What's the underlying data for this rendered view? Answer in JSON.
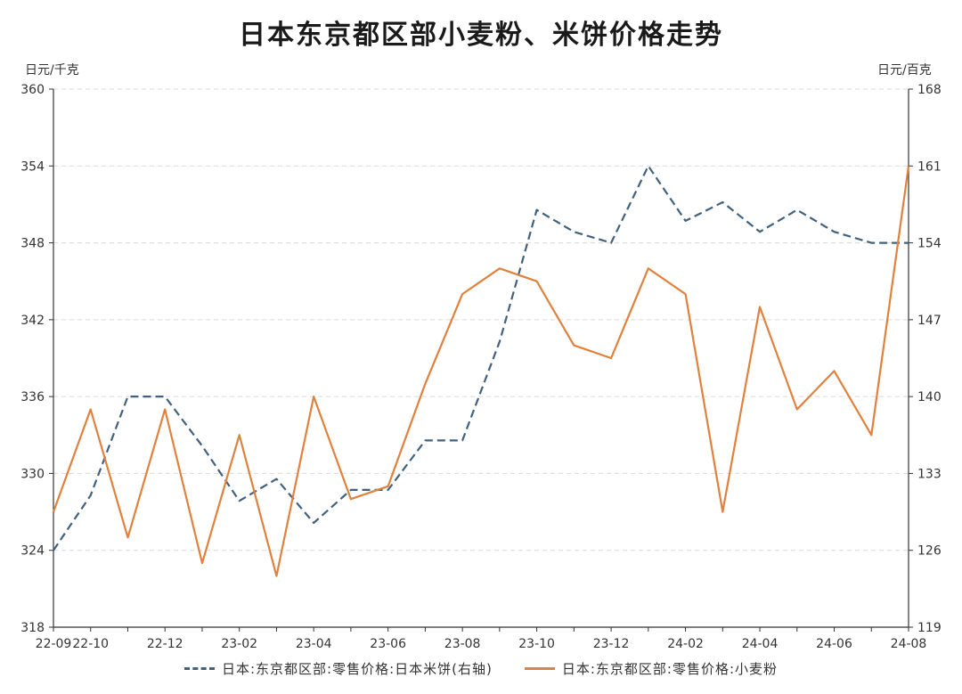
{
  "chart_data": {
    "type": "line",
    "title": "日本东京都区部小麦粉、米饼价格走势",
    "left_axis_unit": "日元/千克",
    "right_axis_unit": "日元/百克",
    "left_ylim": [
      318,
      360
    ],
    "right_ylim": [
      119,
      168
    ],
    "left_ticks": [
      318,
      324,
      330,
      336,
      342,
      348,
      354,
      360
    ],
    "right_ticks": [
      119,
      126,
      133,
      140,
      147,
      154,
      161,
      168
    ],
    "x": [
      "22-09",
      "22-10",
      "22-11",
      "22-12",
      "23-01",
      "23-02",
      "23-03",
      "23-04",
      "23-05",
      "23-06",
      "23-07",
      "23-08",
      "23-09",
      "23-10",
      "23-11",
      "23-12",
      "24-01",
      "24-02",
      "24-03",
      "24-04",
      "24-05",
      "24-06",
      "24-07",
      "24-08"
    ],
    "x_tick_labels": [
      "22-09",
      "22-10",
      "",
      "22-12",
      "",
      "23-02",
      "",
      "23-04",
      "",
      "23-06",
      "",
      "23-08",
      "",
      "23-10",
      "",
      "23-12",
      "",
      "24-02",
      "",
      "24-04",
      "",
      "24-06",
      "",
      "24-08"
    ],
    "grid": true,
    "legend_position": "bottom",
    "series": [
      {
        "name": "日本:东京都区部:零售价格:日本米饼(右轴)",
        "axis": "right",
        "color": "#41617f",
        "style": "dashed",
        "values": [
          126.0,
          131.0,
          140.0,
          140.0,
          135.5,
          130.5,
          132.5,
          128.5,
          131.5,
          131.5,
          136.0,
          136.0,
          145.0,
          157.0,
          155.0,
          154.0,
          161.0,
          156.0,
          157.7,
          155.0,
          157.0,
          155.0,
          154.0,
          154.0
        ]
      },
      {
        "name": "日本:东京都区部:零售价格:小麦粉",
        "axis": "left",
        "color": "#e0813d",
        "style": "solid",
        "values": [
          327,
          335,
          325,
          335,
          323,
          333,
          322,
          336,
          328,
          329,
          337,
          344,
          346,
          345,
          340,
          339,
          346,
          344,
          327,
          343,
          335,
          338,
          333,
          354
        ]
      }
    ]
  }
}
